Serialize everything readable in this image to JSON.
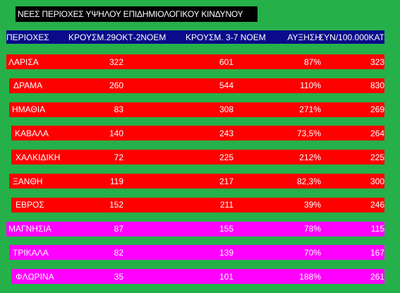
{
  "title": "ΝΕΕΣ ΠΕΡΙΟΧΕΣ ΥΨΗΛΟΥ ΕΠΙΔΗΜΙΟΛΟΓΙΚΟΥ ΚΙΝΔΥΝΟΥ",
  "header": [
    "ΠΕΡΙΟΧΕΣ",
    "ΚΡΟΥΣΜ.29ΟΚΤ-2ΝΟΕΜ",
    "ΚΡΟΥΣΜ. 3-7 ΝΟΕΜ",
    "ΑΥΞΗΣΗ",
    "ΣΥΝ/100.000ΚΑΤ"
  ],
  "rows": [
    {
      "name": "ΛΑΡΙΣΑ",
      "prev": "322",
      "curr": "601",
      "increase": "87%",
      "per100k": "323",
      "color": "#ff0000"
    },
    {
      "name": "ΔΡΑΜΑ",
      "prev": "260",
      "curr": "544",
      "increase": "110%",
      "per100k": "830",
      "color": "#ff0000"
    },
    {
      "name": "ΗΜΑΘΙΑ",
      "prev": "83",
      "curr": "308",
      "increase": "271%",
      "per100k": "269",
      "color": "#ff0000"
    },
    {
      "name": "ΚΑΒΑΛΑ",
      "prev": "140",
      "curr": "243",
      "increase": "73,5%",
      "per100k": "264",
      "color": "#ff0000"
    },
    {
      "name": "ΧΑΛΚΙΔΙΚΗ",
      "prev": "72",
      "curr": "225",
      "increase": "212%",
      "per100k": "225",
      "color": "#ff0000"
    },
    {
      "name": "ΞΑΝΘΗ",
      "prev": "119",
      "curr": "217",
      "increase": "82,3%",
      "per100k": "300",
      "color": "#ff0000"
    },
    {
      "name": "ΕΒΡΟΣ",
      "prev": "152",
      "curr": "211",
      "increase": "39%",
      "per100k": "246",
      "color": "#ff0000"
    },
    {
      "name": "ΜΑΓΝΗΣΙΑ",
      "prev": "87",
      "curr": "155",
      "increase": "78%",
      "per100k": "115",
      "color": "#ff00ff"
    },
    {
      "name": "ΤΡΙΚΑΛΑ",
      "prev": "82",
      "curr": "139",
      "increase": "70%",
      "per100k": "167",
      "color": "#ff00ff"
    },
    {
      "name": "ΦΛΩΡΙΝΑ",
      "prev": "35",
      "curr": "101",
      "increase": "188%",
      "per100k": "261",
      "color": "#ff00ff"
    }
  ]
}
